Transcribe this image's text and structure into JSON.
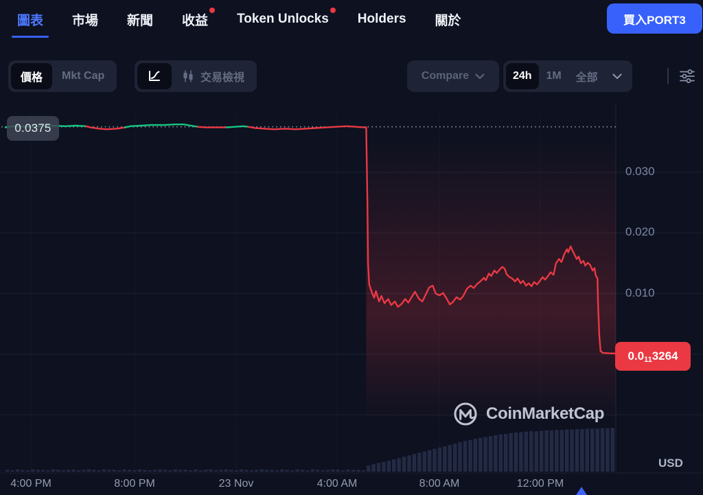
{
  "nav": {
    "tabs": [
      {
        "label": "圖表",
        "active": true,
        "dot": false
      },
      {
        "label": "市場",
        "active": false,
        "dot": false
      },
      {
        "label": "新聞",
        "active": false,
        "dot": false
      },
      {
        "label": "收益",
        "active": false,
        "dot": true
      },
      {
        "label": "Token Unlocks",
        "active": false,
        "dot": true
      },
      {
        "label": "Holders",
        "active": false,
        "dot": false
      },
      {
        "label": "關於",
        "active": false,
        "dot": false
      }
    ],
    "buy_button_label": "買入PORT3"
  },
  "toolbar": {
    "price_label": "價格",
    "mktcap_label": "Mkt Cap",
    "trading_view_label": "交易檢視",
    "compare_label": "Compare",
    "ranges": [
      "24h",
      "1M",
      "全部"
    ],
    "active_range": "24h"
  },
  "chart": {
    "prev_close_badge": "0.0375",
    "price_badge": {
      "prefix": "0.0",
      "zeros_sub": "11",
      "digits": "3264"
    },
    "y_labels": [
      "0.030",
      "0.020",
      "0.010"
    ],
    "x_labels": [
      "4:00 PM",
      "8:00 PM",
      "23 Nov",
      "4:00 AM",
      "8:00 AM",
      "12:00 PM"
    ],
    "currency_label": "USD",
    "watermark_text": "CoinMarketCap"
  },
  "colors": {
    "up": "#16c784",
    "down": "#ea3943",
    "accent_blue": "#3861fb",
    "volume": "#242a44",
    "grid": "rgba(255,255,255,0.07)",
    "dotted_line": "rgba(255,255,255,0.55)"
  },
  "chart_data": {
    "type": "line",
    "title": "PORT3 price, 24h window (USD)",
    "x_unit": "fraction of 24h window (3:00 PM → 3:00 PM next day)",
    "ylim": [
      -0.0196,
      0.0403
    ],
    "prev_close": 0.0375,
    "gridlines_y": [
      0.03,
      0.02,
      0.01,
      0.0,
      -0.01
    ],
    "crash_t": 0.591,
    "series": [
      {
        "name": "price",
        "points": [
          [
            0.0,
            0.0374,
            "g"
          ],
          [
            0.013,
            0.0376,
            "g"
          ],
          [
            0.042,
            0.0375,
            "g"
          ],
          [
            0.058,
            0.0376,
            "g"
          ],
          [
            0.075,
            0.0377,
            "g"
          ],
          [
            0.098,
            0.0376,
            "g"
          ],
          [
            0.115,
            0.0377,
            "g"
          ],
          [
            0.132,
            0.0376,
            "g"
          ],
          [
            0.139,
            0.0374,
            "r"
          ],
          [
            0.154,
            0.0372,
            "r"
          ],
          [
            0.165,
            0.0371,
            "r"
          ],
          [
            0.182,
            0.0372,
            "r"
          ],
          [
            0.196,
            0.0374,
            "r"
          ],
          [
            0.205,
            0.0376,
            "g"
          ],
          [
            0.222,
            0.0377,
            "g"
          ],
          [
            0.238,
            0.0378,
            "g"
          ],
          [
            0.261,
            0.0378,
            "g"
          ],
          [
            0.278,
            0.0379,
            "g"
          ],
          [
            0.292,
            0.0379,
            "g"
          ],
          [
            0.304,
            0.0377,
            "g"
          ],
          [
            0.315,
            0.0375,
            "g"
          ],
          [
            0.328,
            0.0374,
            "r"
          ],
          [
            0.345,
            0.0374,
            "r"
          ],
          [
            0.362,
            0.0374,
            "r"
          ],
          [
            0.376,
            0.0375,
            "g"
          ],
          [
            0.39,
            0.0376,
            "g"
          ],
          [
            0.398,
            0.0375,
            "g"
          ],
          [
            0.409,
            0.0373,
            "r"
          ],
          [
            0.424,
            0.0372,
            "r"
          ],
          [
            0.441,
            0.0371,
            "r"
          ],
          [
            0.458,
            0.0372,
            "r"
          ],
          [
            0.475,
            0.0371,
            "r"
          ],
          [
            0.492,
            0.0372,
            "r"
          ],
          [
            0.508,
            0.0373,
            "r"
          ],
          [
            0.525,
            0.0374,
            "r"
          ],
          [
            0.542,
            0.0375,
            "r"
          ],
          [
            0.559,
            0.0376,
            "r"
          ],
          [
            0.574,
            0.0375,
            "r"
          ],
          [
            0.587,
            0.0374,
            "r"
          ],
          [
            0.591,
            0.0374,
            "r"
          ],
          [
            0.593,
            0.025,
            "r"
          ],
          [
            0.594,
            0.015,
            "r"
          ],
          [
            0.596,
            0.0115,
            "r"
          ],
          [
            0.601,
            0.01,
            "r"
          ],
          [
            0.604,
            0.0093,
            "r"
          ],
          [
            0.607,
            0.0104,
            "r"
          ],
          [
            0.612,
            0.0087,
            "r"
          ],
          [
            0.616,
            0.0096,
            "r"
          ],
          [
            0.621,
            0.0084,
            "r"
          ],
          [
            0.627,
            0.0091,
            "r"
          ],
          [
            0.632,
            0.0081,
            "r"
          ],
          [
            0.638,
            0.0087,
            "r"
          ],
          [
            0.643,
            0.0078,
            "r"
          ],
          [
            0.649,
            0.0083,
            "r"
          ],
          [
            0.655,
            0.0091,
            "r"
          ],
          [
            0.66,
            0.0085,
            "r"
          ],
          [
            0.666,
            0.0095,
            "r"
          ],
          [
            0.671,
            0.0103,
            "r"
          ],
          [
            0.677,
            0.0092,
            "r"
          ],
          [
            0.683,
            0.0087,
            "r"
          ],
          [
            0.688,
            0.0097,
            "r"
          ],
          [
            0.694,
            0.011,
            "r"
          ],
          [
            0.7,
            0.0113,
            "r"
          ],
          [
            0.705,
            0.01,
            "r"
          ],
          [
            0.711,
            0.0097,
            "r"
          ],
          [
            0.717,
            0.0101,
            "r"
          ],
          [
            0.722,
            0.0093,
            "r"
          ],
          [
            0.728,
            0.0082,
            "r"
          ],
          [
            0.733,
            0.0086,
            "r"
          ],
          [
            0.739,
            0.0094,
            "r"
          ],
          [
            0.745,
            0.009,
            "r"
          ],
          [
            0.75,
            0.0096,
            "r"
          ],
          [
            0.756,
            0.0108,
            "r"
          ],
          [
            0.762,
            0.0113,
            "r"
          ],
          [
            0.767,
            0.0109,
            "r"
          ],
          [
            0.773,
            0.0116,
            "r"
          ],
          [
            0.778,
            0.012,
            "r"
          ],
          [
            0.784,
            0.0126,
            "r"
          ],
          [
            0.787,
            0.0122,
            "r"
          ],
          [
            0.792,
            0.0133,
            "r"
          ],
          [
            0.796,
            0.0129,
            "r"
          ],
          [
            0.801,
            0.0138,
            "r"
          ],
          [
            0.805,
            0.0134,
            "r"
          ],
          [
            0.81,
            0.014,
            "r"
          ],
          [
            0.814,
            0.0144,
            "r"
          ],
          [
            0.818,
            0.0141,
            "r"
          ],
          [
            0.821,
            0.0132,
            "r"
          ],
          [
            0.826,
            0.0127,
            "r"
          ],
          [
            0.83,
            0.0125,
            "r"
          ],
          [
            0.835,
            0.012,
            "r"
          ],
          [
            0.839,
            0.0125,
            "r"
          ],
          [
            0.844,
            0.0117,
            "r"
          ],
          [
            0.848,
            0.0121,
            "r"
          ],
          [
            0.853,
            0.0113,
            "r"
          ],
          [
            0.857,
            0.0117,
            "r"
          ],
          [
            0.862,
            0.0112,
            "r"
          ],
          [
            0.866,
            0.0119,
            "r"
          ],
          [
            0.871,
            0.0115,
            "r"
          ],
          [
            0.875,
            0.012,
            "r"
          ],
          [
            0.88,
            0.0127,
            "r"
          ],
          [
            0.884,
            0.0123,
            "r"
          ],
          [
            0.889,
            0.0129,
            "r"
          ],
          [
            0.893,
            0.0135,
            "r"
          ],
          [
            0.898,
            0.0131,
            "r"
          ],
          [
            0.902,
            0.015,
            "r"
          ],
          [
            0.907,
            0.0157,
            "r"
          ],
          [
            0.911,
            0.0152,
            "r"
          ],
          [
            0.916,
            0.0166,
            "r"
          ],
          [
            0.92,
            0.0173,
            "r"
          ],
          [
            0.922,
            0.0168,
            "r"
          ],
          [
            0.926,
            0.0178,
            "r"
          ],
          [
            0.929,
            0.0171,
            "r"
          ],
          [
            0.933,
            0.0163,
            "r"
          ],
          [
            0.936,
            0.0157,
            "r"
          ],
          [
            0.939,
            0.0161,
            "r"
          ],
          [
            0.943,
            0.015,
            "r"
          ],
          [
            0.947,
            0.0154,
            "r"
          ],
          [
            0.95,
            0.0146,
            "r"
          ],
          [
            0.954,
            0.0151,
            "r"
          ],
          [
            0.958,
            0.0147,
            "r"
          ],
          [
            0.962,
            0.0138,
            "r"
          ],
          [
            0.965,
            0.0142,
            "r"
          ],
          [
            0.967,
            0.013,
            "r"
          ],
          [
            0.97,
            0.0125,
            "r"
          ],
          [
            0.971,
            0.008,
            "r"
          ],
          [
            0.973,
            0.003,
            "r"
          ],
          [
            0.975,
            0.0005,
            "r"
          ],
          [
            0.979,
            0.0002,
            "r"
          ],
          [
            1.0,
            0.0001,
            "r"
          ]
        ]
      }
    ],
    "volume_relative": [
      0.04,
      0.03,
      0.05,
      0.04,
      0.03,
      0.05,
      0.04,
      0.04,
      0.03,
      0.05,
      0.04,
      0.03,
      0.04,
      0.05,
      0.03,
      0.04,
      0.05,
      0.04,
      0.03,
      0.05,
      0.04,
      0.04,
      0.03,
      0.05,
      0.04,
      0.03,
      0.05,
      0.04,
      0.03,
      0.04,
      0.05,
      0.04,
      0.03,
      0.05,
      0.04,
      0.04,
      0.03,
      0.05,
      0.03,
      0.04,
      0.05,
      0.03,
      0.04,
      0.05,
      0.04,
      0.03,
      0.05,
      0.04,
      0.03,
      0.04,
      0.05,
      0.04,
      0.04,
      0.03,
      0.05,
      0.04,
      0.03,
      0.05,
      0.04,
      0.03,
      0.05,
      0.04,
      0.03,
      0.04,
      0.05,
      0.04,
      0.03,
      0.05,
      0.04,
      0.04,
      0.03,
      0.14,
      0.17,
      0.2,
      0.22,
      0.25,
      0.28,
      0.31,
      0.34,
      0.37,
      0.4,
      0.43,
      0.46,
      0.49,
      0.52,
      0.55,
      0.58,
      0.61,
      0.64,
      0.67,
      0.7,
      0.72,
      0.75,
      0.77,
      0.79,
      0.81,
      0.83,
      0.85,
      0.86,
      0.88,
      0.89,
      0.9,
      0.91,
      0.92,
      0.92,
      0.93,
      0.94,
      0.94,
      0.95,
      0.95,
      0.96,
      0.96,
      0.97,
      0.97,
      0.98,
      0.98,
      0.98,
      0.99,
      0.99,
      1.0
    ]
  }
}
